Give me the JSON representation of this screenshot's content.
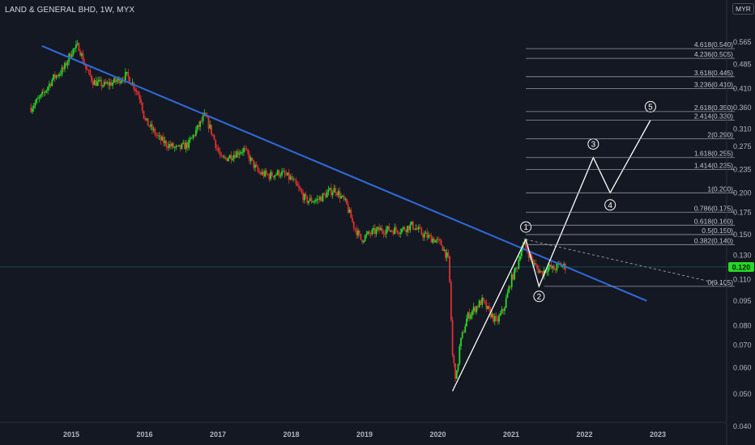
{
  "chart": {
    "title": "LAND & GENERAL BHD, 1W, MYX",
    "currency": "MYR",
    "last_price_label": "0.120"
  },
  "chart_data": {
    "type": "candlestick",
    "symbol": "LAND & GENERAL BHD",
    "interval": "1W",
    "exchange": "MYX",
    "currency": "MYR",
    "y_scale": "log",
    "ylim": [
      0.04,
      0.6
    ],
    "xlim": [
      2014.45,
      2024.2
    ],
    "x_ticks": [
      "2015",
      "2016",
      "2017",
      "2018",
      "2019",
      "2020",
      "2021",
      "2022",
      "2023"
    ],
    "y_ticks": [
      "0.565",
      "0.485",
      "0.410",
      "0.360",
      "0.310",
      "0.275",
      "0.235",
      "0.200",
      "0.175",
      "0.150",
      "0.130",
      "0.110",
      "0.095",
      "0.080",
      "0.070",
      "0.060",
      "0.050",
      "0.040"
    ],
    "last_price": 0.12,
    "price_path": [
      [
        2014.45,
        0.36
      ],
      [
        2014.6,
        0.39
      ],
      [
        2014.75,
        0.44
      ],
      [
        2014.9,
        0.47
      ],
      [
        2015.0,
        0.53
      ],
      [
        2015.1,
        0.55
      ],
      [
        2015.2,
        0.47
      ],
      [
        2015.3,
        0.43
      ],
      [
        2015.45,
        0.42
      ],
      [
        2015.6,
        0.43
      ],
      [
        2015.75,
        0.45
      ],
      [
        2015.85,
        0.42
      ],
      [
        2015.95,
        0.38
      ],
      [
        2016.0,
        0.33
      ],
      [
        2016.1,
        0.31
      ],
      [
        2016.2,
        0.29
      ],
      [
        2016.3,
        0.28
      ],
      [
        2016.45,
        0.27
      ],
      [
        2016.6,
        0.28
      ],
      [
        2016.75,
        0.32
      ],
      [
        2016.82,
        0.34
      ],
      [
        2016.9,
        0.31
      ],
      [
        2016.97,
        0.28
      ],
      [
        2017.05,
        0.25
      ],
      [
        2017.2,
        0.26
      ],
      [
        2017.35,
        0.27
      ],
      [
        2017.45,
        0.25
      ],
      [
        2017.55,
        0.23
      ],
      [
        2017.7,
        0.225
      ],
      [
        2017.85,
        0.23
      ],
      [
        2018.0,
        0.22
      ],
      [
        2018.1,
        0.205
      ],
      [
        2018.2,
        0.19
      ],
      [
        2018.35,
        0.19
      ],
      [
        2018.5,
        0.2
      ],
      [
        2018.6,
        0.205
      ],
      [
        2018.75,
        0.185
      ],
      [
        2018.85,
        0.16
      ],
      [
        2018.95,
        0.145
      ],
      [
        2019.05,
        0.15
      ],
      [
        2019.2,
        0.155
      ],
      [
        2019.35,
        0.155
      ],
      [
        2019.5,
        0.155
      ],
      [
        2019.65,
        0.16
      ],
      [
        2019.8,
        0.15
      ],
      [
        2019.95,
        0.145
      ],
      [
        2020.05,
        0.14
      ],
      [
        2020.15,
        0.125
      ],
      [
        2020.2,
        0.065
      ],
      [
        2020.25,
        0.055
      ],
      [
        2020.3,
        0.07
      ],
      [
        2020.4,
        0.085
      ],
      [
        2020.5,
        0.09
      ],
      [
        2020.6,
        0.095
      ],
      [
        2020.7,
        0.088
      ],
      [
        2020.8,
        0.082
      ],
      [
        2020.9,
        0.09
      ],
      [
        2021.0,
        0.11
      ],
      [
        2021.08,
        0.12
      ],
      [
        2021.13,
        0.135
      ],
      [
        2021.18,
        0.14
      ],
      [
        2021.25,
        0.13
      ],
      [
        2021.33,
        0.12
      ],
      [
        2021.42,
        0.115
      ],
      [
        2021.5,
        0.12
      ],
      [
        2021.58,
        0.118
      ],
      [
        2021.66,
        0.122
      ],
      [
        2021.74,
        0.12
      ]
    ],
    "downtrend_line": {
      "from": [
        2014.6,
        0.55
      ],
      "to": [
        2022.85,
        0.095
      ]
    },
    "elliott_wave_path": [
      [
        2020.2,
        0.051
      ],
      [
        2021.2,
        0.145
      ],
      [
        2021.38,
        0.105
      ],
      [
        2022.12,
        0.255
      ],
      [
        2022.35,
        0.2
      ],
      [
        2022.9,
        0.33
      ]
    ],
    "wave_labels": [
      {
        "label": "1",
        "x": 2021.2,
        "y": 0.158
      },
      {
        "label": "2",
        "x": 2021.38,
        "y": 0.098
      },
      {
        "label": "3",
        "x": 2022.12,
        "y": 0.28
      },
      {
        "label": "4",
        "x": 2022.35,
        "y": 0.184
      },
      {
        "label": "5",
        "x": 2022.9,
        "y": 0.362
      }
    ],
    "projection_line": {
      "from": [
        2021.2,
        0.145
      ],
      "to": [
        2024.0,
        0.105
      ],
      "style": "dashed"
    },
    "fib_levels": [
      {
        "ratio": "4.618",
        "value": 0.54,
        "label": "4.618(0.540)"
      },
      {
        "ratio": "4.236",
        "value": 0.505,
        "label": "4.236(0.505)"
      },
      {
        "ratio": "3.618",
        "value": 0.445,
        "label": "3.618(0.445)"
      },
      {
        "ratio": "3.236",
        "value": 0.41,
        "label": "3.236(0.410)"
      },
      {
        "ratio": "2.618",
        "value": 0.35,
        "label": "2.618(0.350)"
      },
      {
        "ratio": "2.414",
        "value": 0.33,
        "label": "2.414(0.330)"
      },
      {
        "ratio": "2",
        "value": 0.29,
        "label": "2(0.290)"
      },
      {
        "ratio": "1.618",
        "value": 0.255,
        "label": "1.618(0.255)"
      },
      {
        "ratio": "1.414",
        "value": 0.235,
        "label": "1.414(0.235)"
      },
      {
        "ratio": "1",
        "value": 0.2,
        "label": "1(0.200)"
      },
      {
        "ratio": "0.786",
        "value": 0.175,
        "label": "0.786(0.175)"
      },
      {
        "ratio": "0.618",
        "value": 0.16,
        "label": "0.618(0.160)"
      },
      {
        "ratio": "0.5",
        "value": 0.15,
        "label": "0.5(0.150)"
      },
      {
        "ratio": "0.382",
        "value": 0.14,
        "label": "0.382(0.140)"
      },
      {
        "ratio": "0",
        "value": 0.105,
        "label": "0(0.105)"
      }
    ],
    "colors": {
      "background": "#141823",
      "up_candle": "#26d926",
      "down_candle": "#e03030",
      "trendline": "#2f6bdb",
      "wave": "#ffffff",
      "fib": "#9598a1",
      "last_price": "#26d926"
    },
    "grid": false,
    "legend": "none"
  }
}
